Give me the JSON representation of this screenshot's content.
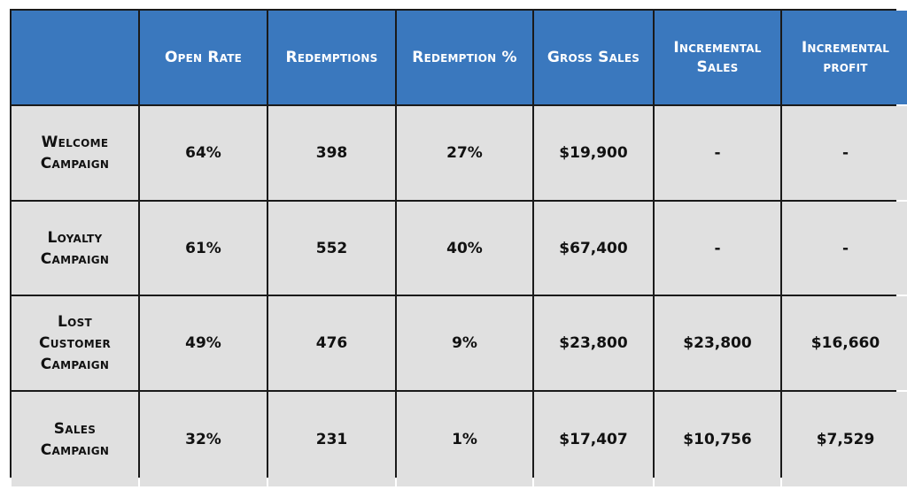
{
  "table": {
    "columns": [
      "",
      "Open Rate",
      "Redemptions",
      "Redemption %",
      "Gross Sales",
      "Incremental\nSales",
      "Incremental\nprofit"
    ],
    "rows": [
      {
        "name": "Welcome\nCampaign",
        "cells": [
          "64%",
          "398",
          "27%",
          "$19,900",
          "-",
          "-"
        ]
      },
      {
        "name": "Loyalty\nCampaign",
        "cells": [
          "61%",
          "552",
          "40%",
          "$67,400",
          "-",
          "-"
        ]
      },
      {
        "name": "Lost\nCustomer\nCampaign",
        "cells": [
          "49%",
          "476",
          "9%",
          "$23,800",
          "$23,800",
          "$16,660"
        ]
      },
      {
        "name": "Sales\nCampaign",
        "cells": [
          "32%",
          "231",
          "1%",
          "$17,407",
          "$10,756",
          "$7,529"
        ]
      }
    ]
  },
  "colors": {
    "header_bg": "#3a78be",
    "header_text": "#ffffff",
    "cell_bg": "#e0e0e0",
    "border": "#1a1a1a"
  }
}
